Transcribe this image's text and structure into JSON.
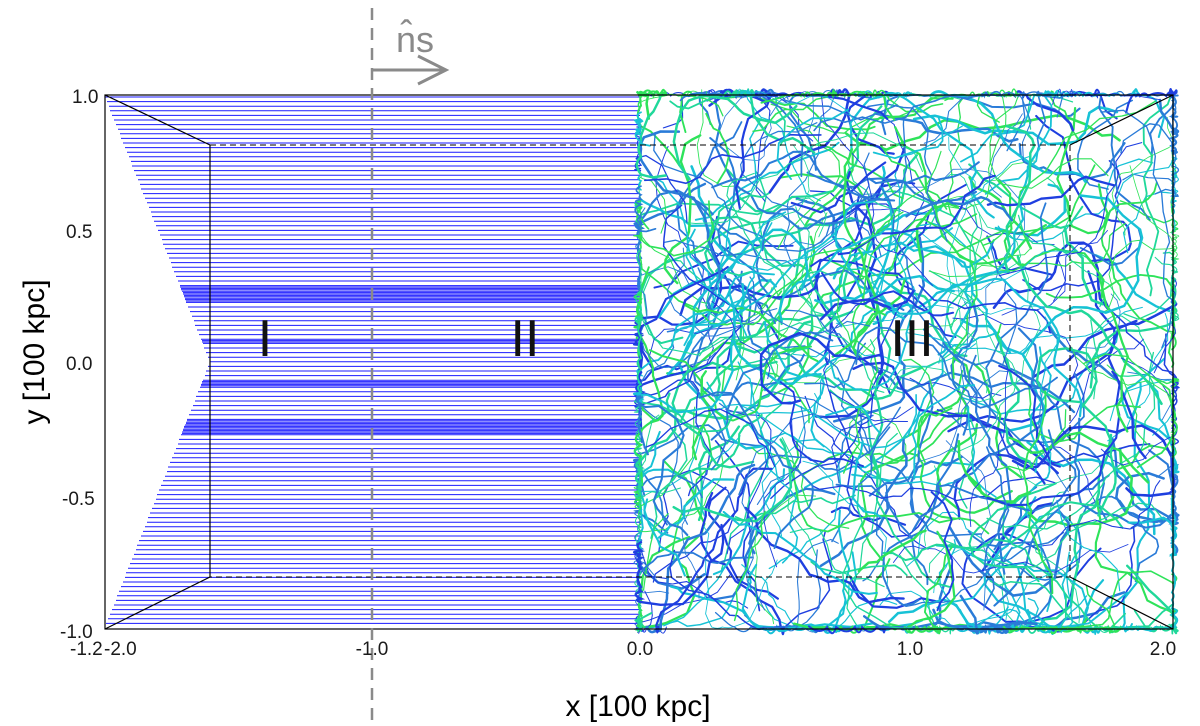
{
  "figure": {
    "xlabel": "x [100 kpc]",
    "ylabel": "y [100 kpc]",
    "x_ticks": [
      "-2.0",
      "-1.0",
      "0.0",
      "1.0",
      "2.0"
    ],
    "y_ticks": [
      "1.0",
      "0.5",
      "0.0",
      "-0.5",
      "-1.0"
    ],
    "region_labels": [
      "I",
      "II",
      "III"
    ],
    "shock_normal_label": "n̂s",
    "corner_label": "-1.0",
    "corner_axis_glyphs": "-1.2",
    "colors": {
      "field_lines_uniform": "#1a1aff",
      "field_lines_turb": [
        "#1f3fe0",
        "#2a7bd8",
        "#17c2d6",
        "#20d89a",
        "#2ee35a"
      ],
      "shock_line": "#8a8a8a",
      "frame": "#000000"
    }
  }
}
